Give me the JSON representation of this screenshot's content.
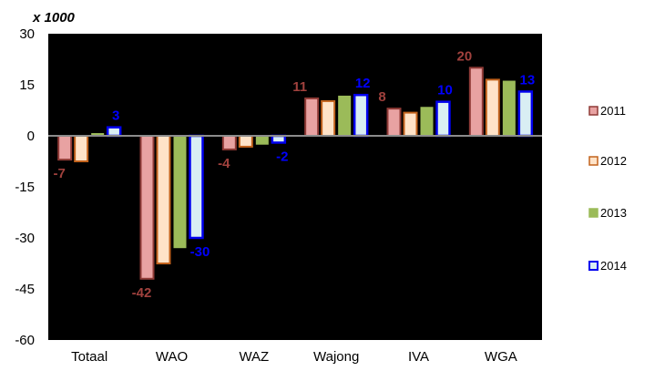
{
  "chart_data": {
    "type": "bar",
    "unit_label": "x 1000",
    "categories": [
      "Totaal",
      "WAO",
      "WAZ",
      "Wajong",
      "IVA",
      "WGA"
    ],
    "ylim": [
      -60,
      30
    ],
    "yticks": [
      -60,
      -45,
      -30,
      -15,
      0,
      15,
      30
    ],
    "grid": false,
    "legend_position": "right",
    "series": [
      {
        "name": "2011",
        "values": [
          -7,
          -42,
          -4,
          11,
          8,
          20
        ],
        "fill": "#e8a2a2",
        "stroke": "#8f3a36",
        "labels": [
          "-7",
          "-42",
          "-4",
          "11",
          "8",
          "20"
        ],
        "label_color": "#a0413d"
      },
      {
        "name": "2012",
        "values": [
          -7.5,
          -37.5,
          -3.2,
          10.2,
          6.8,
          16.5
        ],
        "fill": "#ffe3c8",
        "stroke": "#c2621c",
        "labels": [
          "",
          "",
          "",
          "",
          "",
          ""
        ],
        "label_color": "#c2621c"
      },
      {
        "name": "2013",
        "values": [
          0.8,
          -33,
          -2.6,
          11.8,
          8.5,
          16.2
        ],
        "fill": "#9bbb59",
        "stroke": "#9bbb59",
        "labels": [
          "",
          "",
          "",
          "",
          "",
          ""
        ],
        "label_color": "#77933c"
      },
      {
        "name": "2014",
        "values": [
          2.5,
          -30,
          -2,
          12,
          10,
          13
        ],
        "fill": "#d9eef3",
        "stroke": "#0000ee",
        "labels": [
          "3",
          "-30",
          "-2",
          "12",
          "10",
          "13"
        ],
        "label_color": "#0000ff"
      }
    ]
  }
}
